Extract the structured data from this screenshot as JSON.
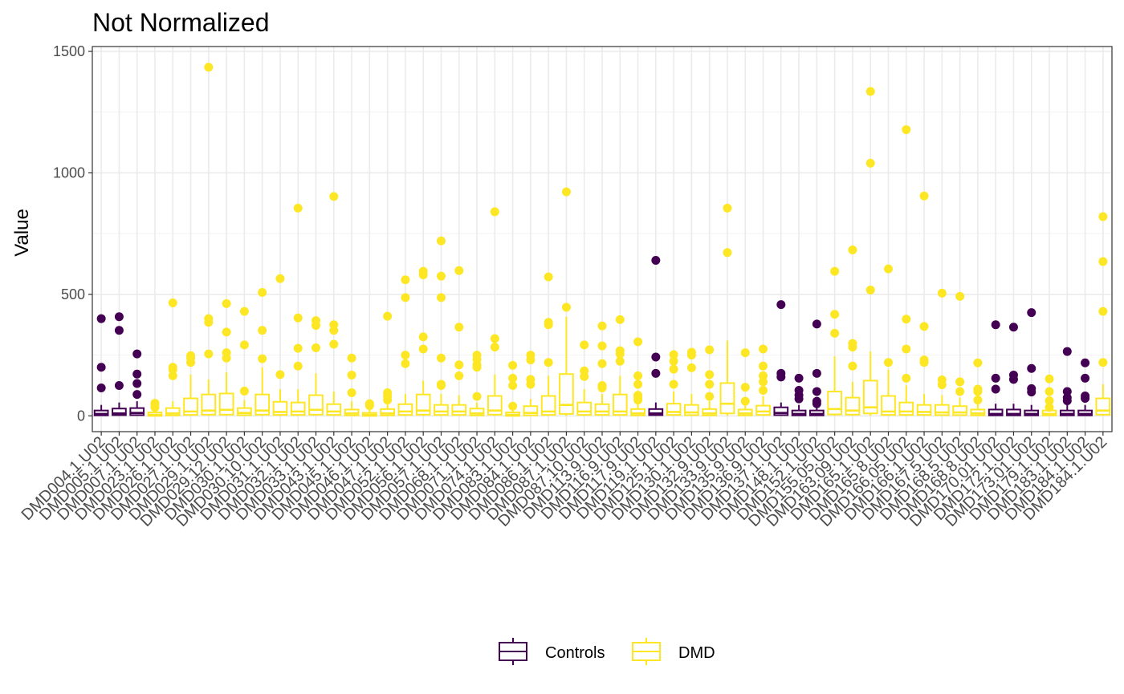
{
  "chart_data": {
    "type": "box",
    "title": "Not Normalized",
    "xlabel": "",
    "ylabel": "Value",
    "ylim": [
      -65,
      1520
    ],
    "yticks": [
      0,
      500,
      1000,
      1500
    ],
    "grid": true,
    "legend_position": "bottom",
    "groups": [
      {
        "name": "Controls",
        "color": "#440154"
      },
      {
        "name": "DMD",
        "color": "#FDE725"
      }
    ],
    "boxes": [
      {
        "label": "DMD004.1.U02",
        "group": "Controls",
        "q1": 2,
        "median": 8,
        "q3": 22,
        "whisker_low": 0,
        "whisker_high": 45,
        "outliers": [
          400,
          200,
          115
        ]
      },
      {
        "label": "DMD005.1.U02",
        "group": "Controls",
        "q1": 3,
        "median": 10,
        "q3": 30,
        "whisker_low": 0,
        "whisker_high": 55,
        "outliers": [
          408,
          352,
          125
        ]
      },
      {
        "label": "DMD007.1.U02",
        "group": "Controls",
        "q1": 3,
        "median": 12,
        "q3": 32,
        "whisker_low": 0,
        "whisker_high": 60,
        "outliers": [
          255,
          172,
          133,
          88
        ]
      },
      {
        "label": "DMD023.1.U02",
        "group": "DMD",
        "q1": 0,
        "median": 4,
        "q3": 14,
        "whisker_low": 0,
        "whisker_high": 30,
        "outliers": [
          52,
          42,
          35
        ]
      },
      {
        "label": "DMD026.1.U02",
        "group": "DMD",
        "q1": 2,
        "median": 10,
        "q3": 32,
        "whisker_low": 0,
        "whisker_high": 60,
        "outliers": [
          465,
          200,
          190,
          165
        ]
      },
      {
        "label": "DMD027.1.U02",
        "group": "DMD",
        "q1": 4,
        "median": 18,
        "q3": 72,
        "whisker_low": 0,
        "whisker_high": 170,
        "outliers": [
          248,
          238,
          220
        ]
      },
      {
        "label": "DMD029.1.U02",
        "group": "DMD",
        "q1": 5,
        "median": 22,
        "q3": 88,
        "whisker_low": 0,
        "whisker_high": 150,
        "outliers": [
          1435,
          400,
          385,
          255
        ]
      },
      {
        "label": "DMD029.12.U02",
        "group": "DMD",
        "q1": 5,
        "median": 25,
        "q3": 92,
        "whisker_low": 0,
        "whisker_high": 180,
        "outliers": [
          462,
          345,
          260,
          238
        ]
      },
      {
        "label": "DMD030.1.U02",
        "group": "DMD",
        "q1": 3,
        "median": 12,
        "q3": 32,
        "whisker_low": 0,
        "whisker_high": 65,
        "outliers": [
          430,
          292,
          102
        ]
      },
      {
        "label": "DMD030.10.U02",
        "group": "DMD",
        "q1": 5,
        "median": 22,
        "q3": 88,
        "whisker_low": 0,
        "whisker_high": 200,
        "outliers": [
          508,
          352,
          235
        ]
      },
      {
        "label": "DMD031.1.U02",
        "group": "DMD",
        "q1": 4,
        "median": 16,
        "q3": 58,
        "whisker_low": 0,
        "whisker_high": 110,
        "outliers": [
          565,
          170
        ]
      },
      {
        "label": "DMD032.1.U02",
        "group": "DMD",
        "q1": 4,
        "median": 18,
        "q3": 55,
        "whisker_low": 0,
        "whisker_high": 110,
        "outliers": [
          855,
          403,
          278,
          205
        ]
      },
      {
        "label": "DMD033.1.U02",
        "group": "DMD",
        "q1": 5,
        "median": 25,
        "q3": 85,
        "whisker_low": 0,
        "whisker_high": 175,
        "outliers": [
          392,
          372,
          280
        ]
      },
      {
        "label": "DMD043.1.U02",
        "group": "DMD",
        "q1": 4,
        "median": 18,
        "q3": 48,
        "whisker_low": 0,
        "whisker_high": 100,
        "outliers": [
          903,
          375,
          352,
          295
        ]
      },
      {
        "label": "DMD045.1.U02",
        "group": "DMD",
        "q1": 2,
        "median": 10,
        "q3": 26,
        "whisker_low": 0,
        "whisker_high": 60,
        "outliers": [
          238,
          168,
          95
        ]
      },
      {
        "label": "DMD046.1.U02",
        "group": "DMD",
        "q1": 0,
        "median": 4,
        "q3": 12,
        "whisker_low": 0,
        "whisker_high": 25,
        "outliers": [
          50,
          42
        ]
      },
      {
        "label": "DMD047.1.U02",
        "group": "DMD",
        "q1": 2,
        "median": 10,
        "q3": 28,
        "whisker_low": 0,
        "whisker_high": 50,
        "outliers": [
          410,
          95,
          80,
          65
        ]
      },
      {
        "label": "DMD052.1.U02",
        "group": "DMD",
        "q1": 4,
        "median": 18,
        "q3": 48,
        "whisker_low": 0,
        "whisker_high": 90,
        "outliers": [
          560,
          487,
          250,
          215
        ]
      },
      {
        "label": "DMD056.1.U02",
        "group": "DMD",
        "q1": 5,
        "median": 22,
        "q3": 88,
        "whisker_low": 0,
        "whisker_high": 145,
        "outliers": [
          595,
          580,
          325,
          275
        ]
      },
      {
        "label": "DMD057.1.U02",
        "group": "DMD",
        "q1": 4,
        "median": 18,
        "q3": 45,
        "whisker_low": 0,
        "whisker_high": 90,
        "outliers": [
          720,
          575,
          487,
          238,
          130,
          125
        ]
      },
      {
        "label": "DMD068.1.U02",
        "group": "DMD",
        "q1": 4,
        "median": 18,
        "q3": 45,
        "whisker_low": 0,
        "whisker_high": 85,
        "outliers": [
          598,
          365,
          210,
          165
        ]
      },
      {
        "label": "DMD071.1.U02",
        "group": "DMD",
        "q1": 2,
        "median": 10,
        "q3": 30,
        "whisker_low": 0,
        "whisker_high": 55,
        "outliers": [
          250,
          232,
          210,
          200,
          80
        ]
      },
      {
        "label": "DMD074.1.U02",
        "group": "DMD",
        "q1": 5,
        "median": 22,
        "q3": 82,
        "whisker_low": 0,
        "whisker_high": 170,
        "outliers": [
          840,
          318,
          283
        ]
      },
      {
        "label": "DMD083.1.U02",
        "group": "DMD",
        "q1": 0,
        "median": 4,
        "q3": 14,
        "whisker_low": 0,
        "whisker_high": 28,
        "outliers": [
          208,
          155,
          125,
          40
        ]
      },
      {
        "label": "DMD084.1.U02",
        "group": "DMD",
        "q1": 2,
        "median": 12,
        "q3": 40,
        "whisker_low": 0,
        "whisker_high": 70,
        "outliers": [
          250,
          230,
          150,
          130
        ]
      },
      {
        "label": "DMD086.1.U02",
        "group": "DMD",
        "q1": 4,
        "median": 18,
        "q3": 82,
        "whisker_low": 0,
        "whisker_high": 165,
        "outliers": [
          572,
          385,
          375,
          220
        ]
      },
      {
        "label": "DMD087.1.U02",
        "group": "DMD",
        "q1": 8,
        "median": 45,
        "q3": 172,
        "whisker_low": 0,
        "whisker_high": 408,
        "outliers": [
          922,
          447
        ]
      },
      {
        "label": "DMD087.10.U02",
        "group": "DMD",
        "q1": 4,
        "median": 18,
        "q3": 55,
        "whisker_low": 0,
        "whisker_high": 110,
        "outliers": [
          292,
          185,
          162
        ]
      },
      {
        "label": "DMD113.9.U02",
        "group": "DMD",
        "q1": 4,
        "median": 18,
        "q3": 48,
        "whisker_low": 0,
        "whisker_high": 90,
        "outliers": [
          370,
          288,
          215,
          125,
          115
        ]
      },
      {
        "label": "DMD116.9.U02",
        "group": "DMD",
        "q1": 4,
        "median": 18,
        "q3": 88,
        "whisker_low": 0,
        "whisker_high": 165,
        "outliers": [
          396,
          268,
          255,
          225
        ]
      },
      {
        "label": "DMD117.9.U02",
        "group": "DMD",
        "q1": 2,
        "median": 10,
        "q3": 28,
        "whisker_low": 0,
        "whisker_high": 55,
        "outliers": [
          305,
          165,
          130,
          85,
          75,
          65
        ]
      },
      {
        "label": "DMD119.1.U02",
        "group": "Controls",
        "q1": 3,
        "median": 10,
        "q3": 28,
        "whisker_low": 0,
        "whisker_high": 55,
        "outliers": [
          640,
          242,
          175
        ]
      },
      {
        "label": "DMD125.1.U02",
        "group": "DMD",
        "q1": 4,
        "median": 16,
        "q3": 50,
        "whisker_low": 0,
        "whisker_high": 100,
        "outliers": [
          252,
          225,
          192,
          130
        ]
      },
      {
        "label": "DMD130.1.U02",
        "group": "DMD",
        "q1": 3,
        "median": 14,
        "q3": 45,
        "whisker_low": 0,
        "whisker_high": 90,
        "outliers": [
          262,
          250,
          198
        ]
      },
      {
        "label": "DMD132.9.U02",
        "group": "DMD",
        "q1": 2,
        "median": 10,
        "q3": 28,
        "whisker_low": 0,
        "whisker_high": 60,
        "outliers": [
          272,
          170,
          130,
          80
        ]
      },
      {
        "label": "DMD133.9.U02",
        "group": "DMD",
        "q1": 10,
        "median": 50,
        "q3": 135,
        "whisker_low": 0,
        "whisker_high": 310,
        "outliers": [
          855,
          672
        ]
      },
      {
        "label": "DMD135.9.U02",
        "group": "DMD",
        "q1": 2,
        "median": 10,
        "q3": 26,
        "whisker_low": 0,
        "whisker_high": 45,
        "outliers": [
          260,
          118,
          60
        ]
      },
      {
        "label": "DMD136.9.U02",
        "group": "DMD",
        "q1": 4,
        "median": 18,
        "q3": 42,
        "whisker_low": 0,
        "whisker_high": 80,
        "outliers": [
          275,
          205,
          165,
          140,
          105
        ]
      },
      {
        "label": "DMD137.1.U02",
        "group": "Controls",
        "q1": 3,
        "median": 12,
        "q3": 35,
        "whisker_low": 0,
        "whisker_high": 55,
        "outliers": [
          458,
          175,
          160
        ]
      },
      {
        "label": "DMD148.1.U02",
        "group": "Controls",
        "q1": 2,
        "median": 8,
        "q3": 22,
        "whisker_low": 0,
        "whisker_high": 45,
        "outliers": [
          155,
          105,
          85,
          70
        ]
      },
      {
        "label": "DMD152.1.U02",
        "group": "Controls",
        "q1": 2,
        "median": 8,
        "q3": 22,
        "whisker_low": 0,
        "whisker_high": 40,
        "outliers": [
          378,
          175,
          100,
          60,
          50
        ]
      },
      {
        "label": "DMD155.05.U02",
        "group": "DMD",
        "q1": 6,
        "median": 28,
        "q3": 100,
        "whisker_low": 0,
        "whisker_high": 245,
        "outliers": [
          595,
          418,
          340
        ]
      },
      {
        "label": "DMD163.09.U02",
        "group": "DMD",
        "q1": 5,
        "median": 22,
        "q3": 75,
        "whisker_low": 0,
        "whisker_high": 140,
        "outliers": [
          683,
          298,
          283,
          205
        ]
      },
      {
        "label": "DMD165.1.U02",
        "group": "DMD",
        "q1": 10,
        "median": 35,
        "q3": 145,
        "whisker_low": 0,
        "whisker_high": 265,
        "outliers": [
          1335,
          1040,
          518
        ]
      },
      {
        "label": "DMD165.8.U02",
        "group": "DMD",
        "q1": 4,
        "median": 18,
        "q3": 82,
        "whisker_low": 0,
        "whisker_high": 190,
        "outliers": [
          605,
          220
        ]
      },
      {
        "label": "DMD166.05.U02",
        "group": "DMD",
        "q1": 4,
        "median": 18,
        "q3": 55,
        "whisker_low": 0,
        "whisker_high": 125,
        "outliers": [
          1178,
          398,
          275,
          155
        ]
      },
      {
        "label": "DMD166.1.U02",
        "group": "DMD",
        "q1": 4,
        "median": 16,
        "q3": 45,
        "whisker_low": 0,
        "whisker_high": 90,
        "outliers": [
          905,
          368,
          230,
          220
        ]
      },
      {
        "label": "DMD167.5.U02",
        "group": "DMD",
        "q1": 3,
        "median": 14,
        "q3": 45,
        "whisker_low": 0,
        "whisker_high": 85,
        "outliers": [
          505,
          148,
          128
        ]
      },
      {
        "label": "DMD168.5.U02",
        "group": "DMD",
        "q1": 3,
        "median": 14,
        "q3": 40,
        "whisker_low": 0,
        "whisker_high": 75,
        "outliers": [
          492,
          140,
          100
        ]
      },
      {
        "label": "DMD168.8.U02",
        "group": "DMD",
        "q1": 2,
        "median": 10,
        "q3": 26,
        "whisker_low": 0,
        "whisker_high": 50,
        "outliers": [
          218,
          110,
          100,
          65
        ]
      },
      {
        "label": "DMD170.01.U02",
        "group": "Controls",
        "q1": 2,
        "median": 8,
        "q3": 26,
        "whisker_low": 0,
        "whisker_high": 50,
        "outliers": [
          375,
          155,
          110
        ]
      },
      {
        "label": "DMD172.1.U02",
        "group": "Controls",
        "q1": 2,
        "median": 8,
        "q3": 26,
        "whisker_low": 0,
        "whisker_high": 50,
        "outliers": [
          365,
          168,
          150
        ]
      },
      {
        "label": "DMD173.01.U02",
        "group": "Controls",
        "q1": 2,
        "median": 8,
        "q3": 22,
        "whisker_low": 0,
        "whisker_high": 45,
        "outliers": [
          425,
          195,
          112,
          98
        ]
      },
      {
        "label": "DMD179.1.U02",
        "group": "DMD",
        "q1": 2,
        "median": 8,
        "q3": 22,
        "whisker_low": 0,
        "whisker_high": 40,
        "outliers": [
          152,
          100,
          62,
          35
        ]
      },
      {
        "label": "DMD183.1.U02",
        "group": "Controls",
        "q1": 2,
        "median": 8,
        "q3": 22,
        "whisker_low": 0,
        "whisker_high": 45,
        "outliers": [
          265,
          100,
          75,
          62
        ]
      },
      {
        "label": "DMD184.1.U02",
        "group": "Controls",
        "q1": 2,
        "median": 8,
        "q3": 22,
        "whisker_low": 0,
        "whisker_high": 45,
        "outliers": [
          218,
          155,
          82,
          72
        ]
      },
      {
        "label": "DMD184.1.U02",
        "group": "DMD",
        "q1": 5,
        "median": 22,
        "q3": 72,
        "whisker_low": 0,
        "whisker_high": 130,
        "outliers": [
          820,
          635,
          430,
          220
        ]
      }
    ]
  }
}
